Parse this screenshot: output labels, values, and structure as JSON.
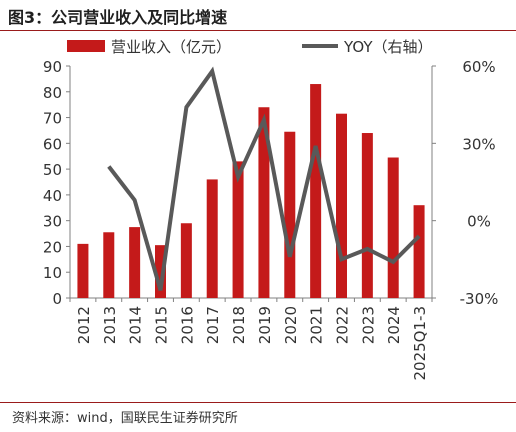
{
  "header": {
    "title": "图3：公司营业收入及同比增速"
  },
  "footer": {
    "source": "资料来源：wind，国联民生证券研究所"
  },
  "chart_data": {
    "type": "bar",
    "categories": [
      "2012",
      "2013",
      "2014",
      "2015",
      "2016",
      "2017",
      "2018",
      "2019",
      "2020",
      "2021",
      "2022",
      "2023",
      "2024",
      "2025Q1-3"
    ],
    "series": [
      {
        "name": "营业收入（亿元）",
        "type": "bar",
        "axis": "left",
        "color": "#c41a1a",
        "values": [
          21,
          25.5,
          27.5,
          20.5,
          29,
          46,
          53,
          74,
          64.5,
          83,
          71.5,
          64,
          54.5,
          36
        ]
      },
      {
        "name": "YOY（右轴）",
        "type": "line",
        "axis": "right",
        "color": "#595959",
        "values": [
          null,
          21,
          8,
          -27,
          44,
          58,
          17,
          39,
          -14,
          29,
          -15,
          -11,
          -16,
          -6
        ]
      }
    ],
    "left_axis": {
      "min": 0,
      "max": 90,
      "ticks": [
        0,
        10,
        20,
        30,
        40,
        50,
        60,
        70,
        80,
        90
      ]
    },
    "right_axis": {
      "min": -30,
      "max": 60,
      "ticks": [
        -30,
        0,
        30,
        60
      ],
      "tick_labels": [
        "-30%",
        "0%",
        "30%",
        "60%"
      ]
    },
    "grid": false,
    "legend_position": "top"
  }
}
